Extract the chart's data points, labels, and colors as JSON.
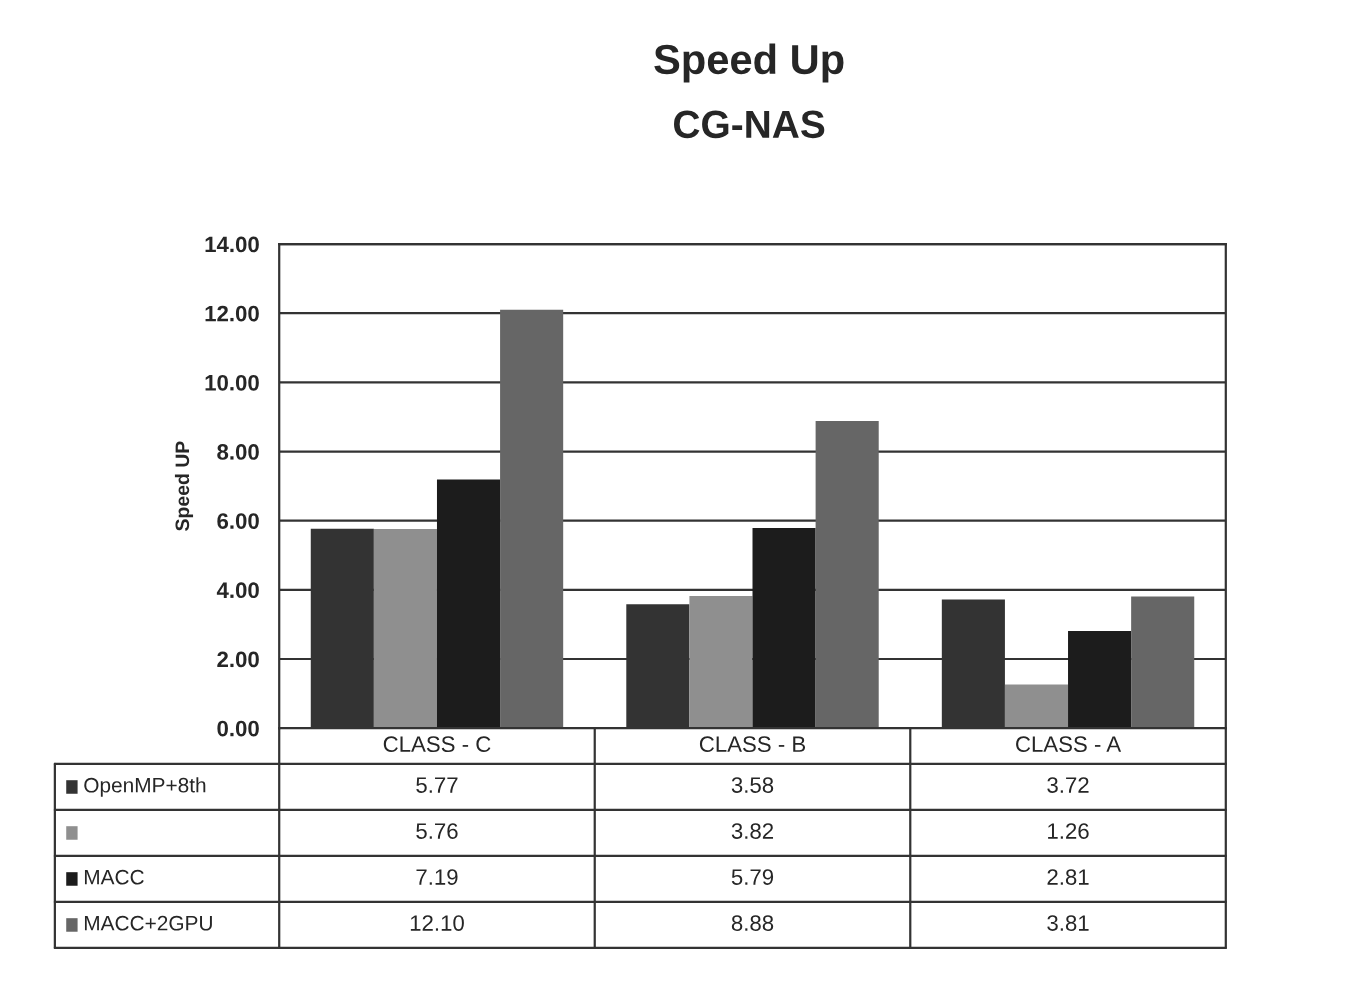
{
  "chart_data": {
    "type": "bar",
    "title": "Speed Up",
    "subtitle": "CG-NAS",
    "ylabel": "Speed UP",
    "categories": [
      "CLASS - C",
      "CLASS - B",
      "CLASS - A"
    ],
    "series": [
      {
        "name": "OpenMP+8th",
        "color": "#333333",
        "values": [
          5.77,
          3.58,
          3.72
        ]
      },
      {
        "color": "#8f8f8f",
        "values": [
          5.76,
          3.82,
          1.26
        ]
      },
      {
        "name": "MACC",
        "color": "#1c1c1c",
        "values": [
          7.19,
          5.79,
          2.81
        ]
      },
      {
        "name": "MACC+2GPU",
        "color": "#666666",
        "values": [
          12.1,
          8.88,
          3.81
        ]
      }
    ],
    "value_labels": [
      [
        "5.77",
        "3.58",
        "3.72"
      ],
      [
        "5.76",
        "3.82",
        "1.26"
      ],
      [
        "7.19",
        "5.79",
        "2.81"
      ],
      [
        "12.10",
        "8.88",
        "3.81"
      ]
    ],
    "ylim": [
      0,
      14
    ],
    "yticks": [
      {
        "value": 0,
        "label": "0.00"
      },
      {
        "value": 2,
        "label": "2.00"
      },
      {
        "value": 4,
        "label": "4.00"
      },
      {
        "value": 6,
        "label": "6.00"
      },
      {
        "value": 8,
        "label": "8.00"
      },
      {
        "value": 10,
        "label": "10.00"
      },
      {
        "value": 12,
        "label": "12.00"
      },
      {
        "value": 14,
        "label": "14.00"
      }
    ],
    "grid": "y",
    "legend": "bottom left"
  }
}
